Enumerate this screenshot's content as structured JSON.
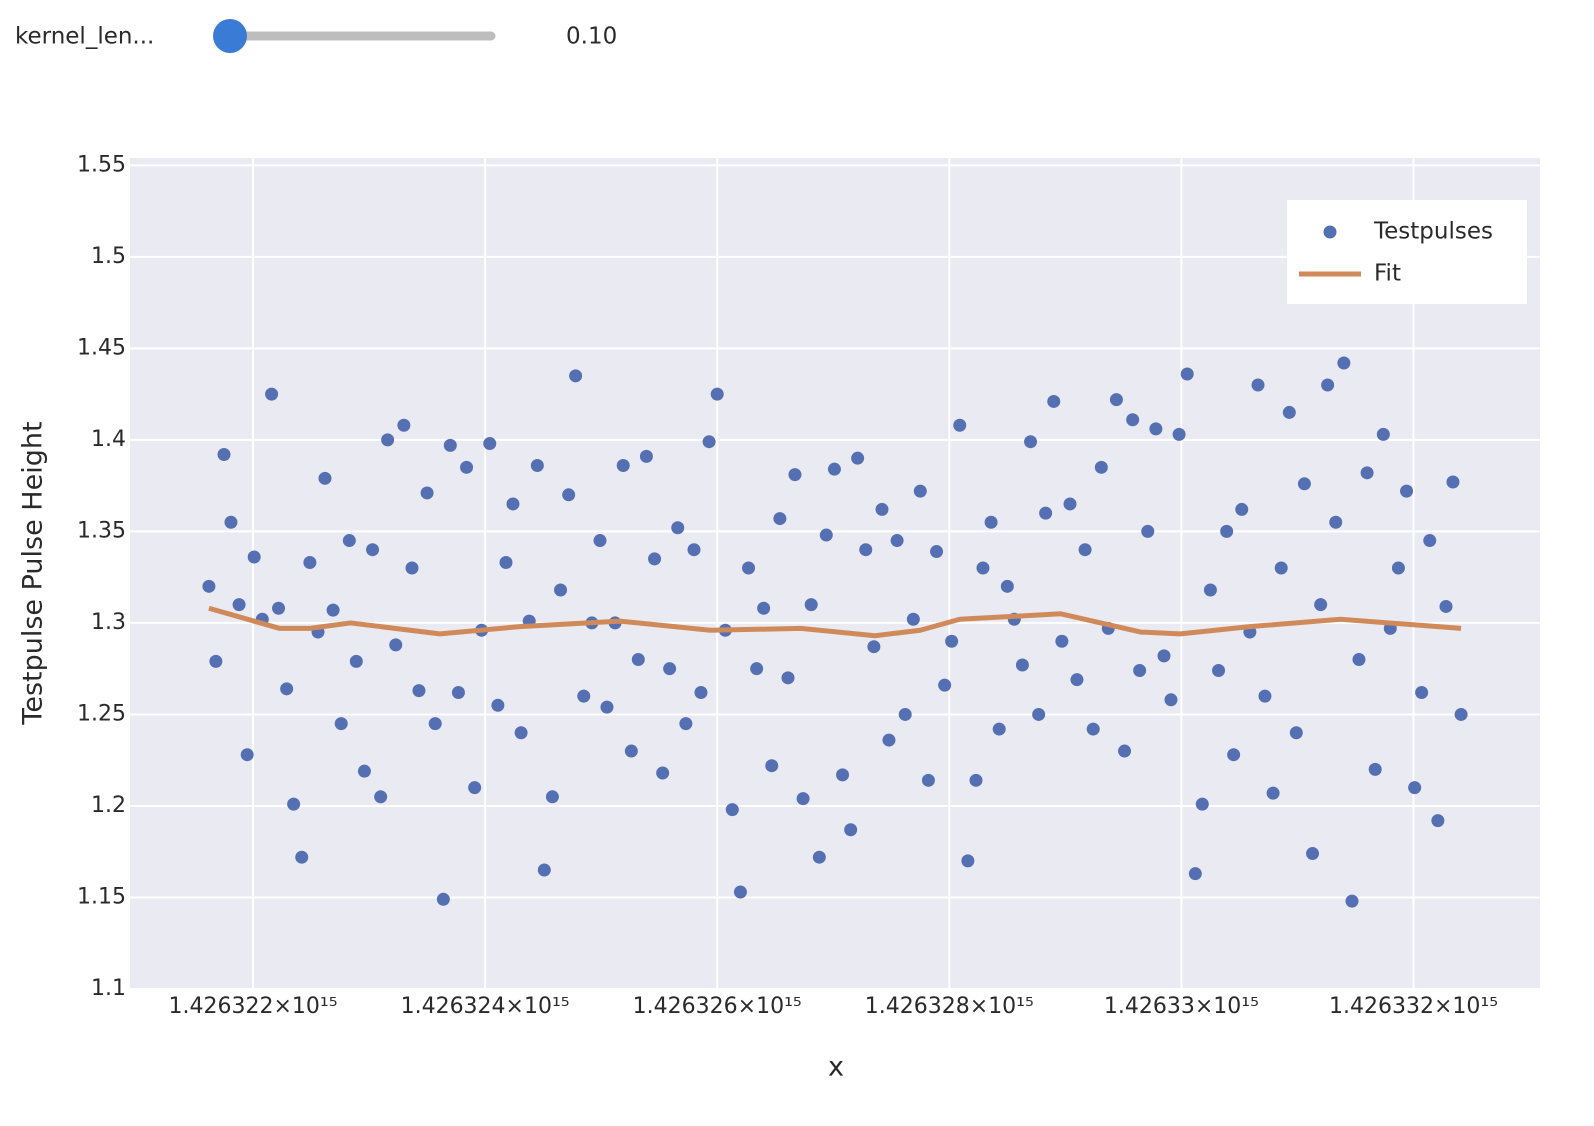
{
  "controls": {
    "slider": {
      "label": "kernel_len...",
      "value": {
        "value": 0.1,
        "label": "0.10"
      }
    }
  },
  "chart_data": {
    "type": "scatter",
    "x_label": "x",
    "y_label": "Testpulse Pulse Height",
    "xlim": [
      1426320940000000.0,
      1426333090000000.0
    ],
    "xticks": [
      {
        "value": 1426322000000000.0,
        "label": "1.426322×10¹⁵"
      },
      {
        "value": 1426324000000000.0,
        "label": "1.426324×10¹⁵"
      },
      {
        "value": 1426326000000000.0,
        "label": "1.426326×10¹⁵"
      },
      {
        "value": 1426328000000000.0,
        "label": "1.426328×10¹⁵"
      },
      {
        "value": 1426330000000000.0,
        "label": "1.42633×10¹⁵"
      },
      {
        "value": 1426332000000000.0,
        "label": "1.426332×10¹⁵"
      }
    ],
    "ylim": [
      1.1,
      1.554
    ],
    "yticks": [
      1.1,
      1.15,
      1.2,
      1.25,
      1.3,
      1.35,
      1.4,
      1.45,
      1.5,
      1.55
    ],
    "grid": true,
    "legend_position": "top-right",
    "series": [
      {
        "name": "Testpulses",
        "mode": "markers",
        "color": "#5470b3",
        "x": [
          1426321620000000.0,
          1426321680000000.0,
          1426321750000000.0,
          1426321810000000.0,
          1426321880000000.0,
          1426321950000000.0,
          1426322010000000.0,
          1426322080000000.0,
          1426322160000000.0,
          1426322220000000.0,
          1426322290000000.0,
          1426322350000000.0,
          1426322420000000.0,
          1426322490000000.0,
          1426322560000000.0,
          1426322620000000.0,
          1426322690000000.0,
          1426322760000000.0,
          1426322830000000.0,
          1426322890000000.0,
          1426322960000000.0,
          1426323030000000.0,
          1426323100000000.0,
          1426323160000000.0,
          1426323230000000.0,
          1426323300000000.0,
          1426323370000000.0,
          1426323430000000.0,
          1426323500000000.0,
          1426323570000000.0,
          1426323640000000.0,
          1426323700000000.0,
          1426323770000000.0,
          1426323840000000.0,
          1426323910000000.0,
          1426323970000000.0,
          1426324040000000.0,
          1426324110000000.0,
          1426324180000000.0,
          1426324240000000.0,
          1426324310000000.0,
          1426324380000000.0,
          1426324450000000.0,
          1426324510000000.0,
          1426324580000000.0,
          1426324650000000.0,
          1426324720000000.0,
          1426324780000000.0,
          1426324850000000.0,
          1426324920000000.0,
          1426324990000000.0,
          1426325050000000.0,
          1426325120000000.0,
          1426325190000000.0,
          1426325260000000.0,
          1426325320000000.0,
          1426325390000000.0,
          1426325460000000.0,
          1426325530000000.0,
          1426325590000000.0,
          1426325660000000.0,
          1426325730000000.0,
          1426325800000000.0,
          1426325860000000.0,
          1426325930000000.0,
          1426326000000000.0,
          1426326070000000.0,
          1426326130000000.0,
          1426326200000000.0,
          1426326270000000.0,
          1426326340000000.0,
          1426326400000000.0,
          1426326470000000.0,
          1426326540000000.0,
          1426326610000000.0,
          1426326670000000.0,
          1426326740000000.0,
          1426326810000000.0,
          1426326880000000.0,
          1426326940000000.0,
          1426327010000000.0,
          1426327080000000.0,
          1426327150000000.0,
          1426327210000000.0,
          1426327280000000.0,
          1426327350000000.0,
          1426327420000000.0,
          1426327480000000.0,
          1426327550000000.0,
          1426327620000000.0,
          1426327690000000.0,
          1426327750000000.0,
          1426327820000000.0,
          1426327890000000.0,
          1426327960000000.0,
          1426328020000000.0,
          1426328090000000.0,
          1426328160000000.0,
          1426328230000000.0,
          1426328290000000.0,
          1426328360000000.0,
          1426328430000000.0,
          1426328500000000.0,
          1426328560000000.0,
          1426328630000000.0,
          1426328700000000.0,
          1426328770000000.0,
          1426328830000000.0,
          1426328900000000.0,
          1426328970000000.0,
          1426329040000000.0,
          1426329100000000.0,
          1426329170000000.0,
          1426329240000000.0,
          1426329310000000.0,
          1426329370000000.0,
          1426329440000000.0,
          1426329510000000.0,
          1426329580000000.0,
          1426329640000000.0,
          1426329710000000.0,
          1426329780000000.0,
          1426329850000000.0,
          1426329910000000.0,
          1426329980000000.0,
          1426330050000000.0,
          1426330120000000.0,
          1426330180000000.0,
          1426330250000000.0,
          1426330320000000.0,
          1426330390000000.0,
          1426330450000000.0,
          1426330520000000.0,
          1426330590000000.0,
          1426330660000000.0,
          1426330720000000.0,
          1426330790000000.0,
          1426330860000000.0,
          1426330930000000.0,
          1426330990000000.0,
          1426331060000000.0,
          1426331130000000.0,
          1426331200000000.0,
          1426331260000000.0,
          1426331330000000.0,
          1426331400000000.0,
          1426331470000000.0,
          1426331530000000.0,
          1426331600000000.0,
          1426331670000000.0,
          1426331740000000.0,
          1426331800000000.0,
          1426331870000000.0,
          1426331940000000.0,
          1426332010000000.0,
          1426332070000000.0,
          1426332140000000.0,
          1426332210000000.0,
          1426332280000000.0,
          1426332340000000.0,
          1426332410000000.0
        ],
        "values": [
          1.32,
          1.279,
          1.392,
          1.355,
          1.31,
          1.228,
          1.336,
          1.302,
          1.425,
          1.308,
          1.264,
          1.201,
          1.172,
          1.333,
          1.295,
          1.379,
          1.307,
          1.245,
          1.345,
          1.279,
          1.219,
          1.34,
          1.205,
          1.4,
          1.288,
          1.408,
          1.33,
          1.263,
          1.371,
          1.245,
          1.149,
          1.397,
          1.262,
          1.385,
          1.21,
          1.296,
          1.398,
          1.255,
          1.333,
          1.365,
          1.24,
          1.301,
          1.386,
          1.165,
          1.205,
          1.318,
          1.37,
          1.435,
          1.26,
          1.3,
          1.345,
          1.254,
          1.3,
          1.386,
          1.23,
          1.28,
          1.391,
          1.335,
          1.218,
          1.275,
          1.352,
          1.245,
          1.34,
          1.262,
          1.399,
          1.425,
          1.296,
          1.198,
          1.153,
          1.33,
          1.275,
          1.308,
          1.222,
          1.357,
          1.27,
          1.381,
          1.204,
          1.31,
          1.172,
          1.348,
          1.384,
          1.217,
          1.187,
          1.39,
          1.34,
          1.287,
          1.362,
          1.236,
          1.345,
          1.25,
          1.302,
          1.372,
          1.214,
          1.339,
          1.266,
          1.29,
          1.408,
          1.17,
          1.214,
          1.33,
          1.355,
          1.242,
          1.32,
          1.302,
          1.277,
          1.399,
          1.25,
          1.36,
          1.421,
          1.29,
          1.365,
          1.269,
          1.34,
          1.242,
          1.385,
          1.297,
          1.422,
          1.23,
          1.411,
          1.274,
          1.35,
          1.406,
          1.282,
          1.258,
          1.403,
          1.436,
          1.163,
          1.201,
          1.318,
          1.274,
          1.35,
          1.228,
          1.362,
          1.295,
          1.43,
          1.26,
          1.207,
          1.33,
          1.415,
          1.24,
          1.376,
          1.174,
          1.31,
          1.43,
          1.355,
          1.442,
          1.148,
          1.28,
          1.382,
          1.22,
          1.403,
          1.297,
          1.33,
          1.372,
          1.21,
          1.262,
          1.345,
          1.192,
          1.309,
          1.377,
          1.25
        ]
      },
      {
        "name": "Fit",
        "mode": "lines",
        "color": "#d08a5a",
        "x": [
          1426321620000000.0,
          1426322230000000.0,
          1426322490000000.0,
          1426322840000000.0,
          1426323610000000.0,
          1426324300000000.0,
          1426325160000000.0,
          1426325940000000.0,
          1426326720000000.0,
          1426327360000000.0,
          1426327750000000.0,
          1426328090000000.0,
          1426328960000000.0,
          1426329650000000.0,
          1426329990000000.0,
          1426330590000000.0,
          1426331370000000.0,
          1426332410000000.0
        ],
        "values": [
          1.308,
          1.297,
          1.297,
          1.3,
          1.294,
          1.298,
          1.301,
          1.296,
          1.297,
          1.293,
          1.296,
          1.302,
          1.305,
          1.295,
          1.294,
          1.298,
          1.302,
          1.297
        ]
      }
    ]
  }
}
